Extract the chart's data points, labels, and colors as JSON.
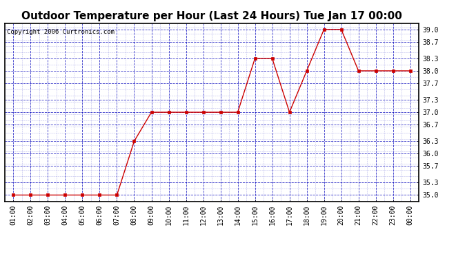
{
  "title": "Outdoor Temperature per Hour (Last 24 Hours) Tue Jan 17 00:00",
  "copyright": "Copyright 2006 Curtronics.com",
  "x_labels": [
    "01:00",
    "02:00",
    "03:00",
    "04:00",
    "05:00",
    "06:00",
    "07:00",
    "08:00",
    "09:00",
    "10:00",
    "11:00",
    "12:00",
    "13:00",
    "14:00",
    "15:00",
    "16:00",
    "17:00",
    "18:00",
    "19:00",
    "20:00",
    "21:00",
    "22:00",
    "23:00",
    "00:00"
  ],
  "y_values": [
    35.0,
    35.0,
    35.0,
    35.0,
    35.0,
    35.0,
    35.0,
    36.3,
    37.0,
    37.0,
    37.0,
    37.0,
    37.0,
    37.0,
    38.3,
    38.3,
    37.0,
    38.0,
    39.0,
    39.0,
    38.0,
    38.0,
    38.0,
    38.0
  ],
  "y_ticks": [
    35.0,
    35.3,
    35.7,
    36.0,
    36.3,
    36.7,
    37.0,
    37.3,
    37.7,
    38.0,
    38.3,
    38.7,
    39.0
  ],
  "ylim_min": 34.85,
  "ylim_max": 39.15,
  "line_color": "#cc0000",
  "marker_color": "#cc0000",
  "grid_color": "#0000bb",
  "background_color": "#ffffff",
  "title_fontsize": 11,
  "tick_fontsize": 7,
  "copyright_fontsize": 6.5
}
